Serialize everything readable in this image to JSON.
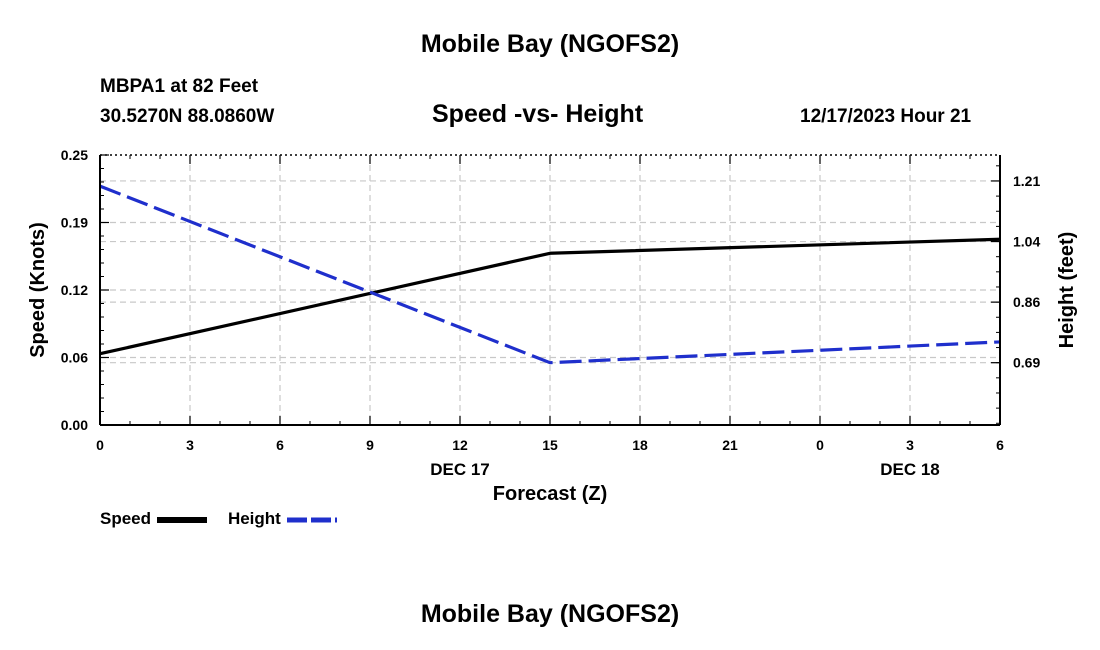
{
  "header": {
    "title": "Mobile Bay (NGOFS2)",
    "station": "MBPA1 at 82 Feet",
    "coords": "30.5270N  88.0860W",
    "subtitle": "Speed -vs- Height",
    "datetime": "12/17/2023 Hour 21",
    "footer_title": "Mobile Bay (NGOFS2)"
  },
  "legend": {
    "speed_label": "Speed",
    "height_label": "Height"
  },
  "colors": {
    "speed": "#000000",
    "height": "#1f2fcc",
    "grid": "#c8c8c8"
  },
  "chart_data": {
    "type": "line",
    "title": "Speed -vs- Height",
    "xlabel": "Forecast (Z)",
    "ylabel": "Speed (Knots)",
    "y2label": "Height (feet)",
    "x_ticks": [
      "0",
      "3",
      "6",
      "9",
      "12",
      "15",
      "18",
      "21",
      "0",
      "3",
      "6"
    ],
    "x_date_labels": [
      {
        "at_tick": 4,
        "text": "DEC 17"
      },
      {
        "at_tick": 9,
        "text": "DEC 18"
      }
    ],
    "y_ticks": [
      "0.00",
      "0.06",
      "0.12",
      "0.19",
      "0.25"
    ],
    "y_tick_values": [
      0.0,
      0.0625,
      0.125,
      0.1875,
      0.25
    ],
    "y2_ticks": [
      "0.69",
      "0.86",
      "1.04",
      "1.21"
    ],
    "y2_tick_values": [
      0.69,
      0.865,
      1.04,
      1.215
    ],
    "ylim": [
      0,
      0.25
    ],
    "y2lim": [
      0.51,
      1.29
    ],
    "xlim": [
      0,
      30
    ],
    "grid": true,
    "legend_placement": "bottom-left",
    "series": [
      {
        "name": "Speed",
        "axis": "left",
        "style": "solid",
        "x": [
          0,
          15,
          30
        ],
        "values": [
          0.066,
          0.159,
          0.172
        ]
      },
      {
        "name": "Height",
        "axis": "right",
        "style": "dashed",
        "x": [
          0,
          15,
          30
        ],
        "values": [
          1.2,
          0.69,
          0.75
        ]
      }
    ]
  }
}
